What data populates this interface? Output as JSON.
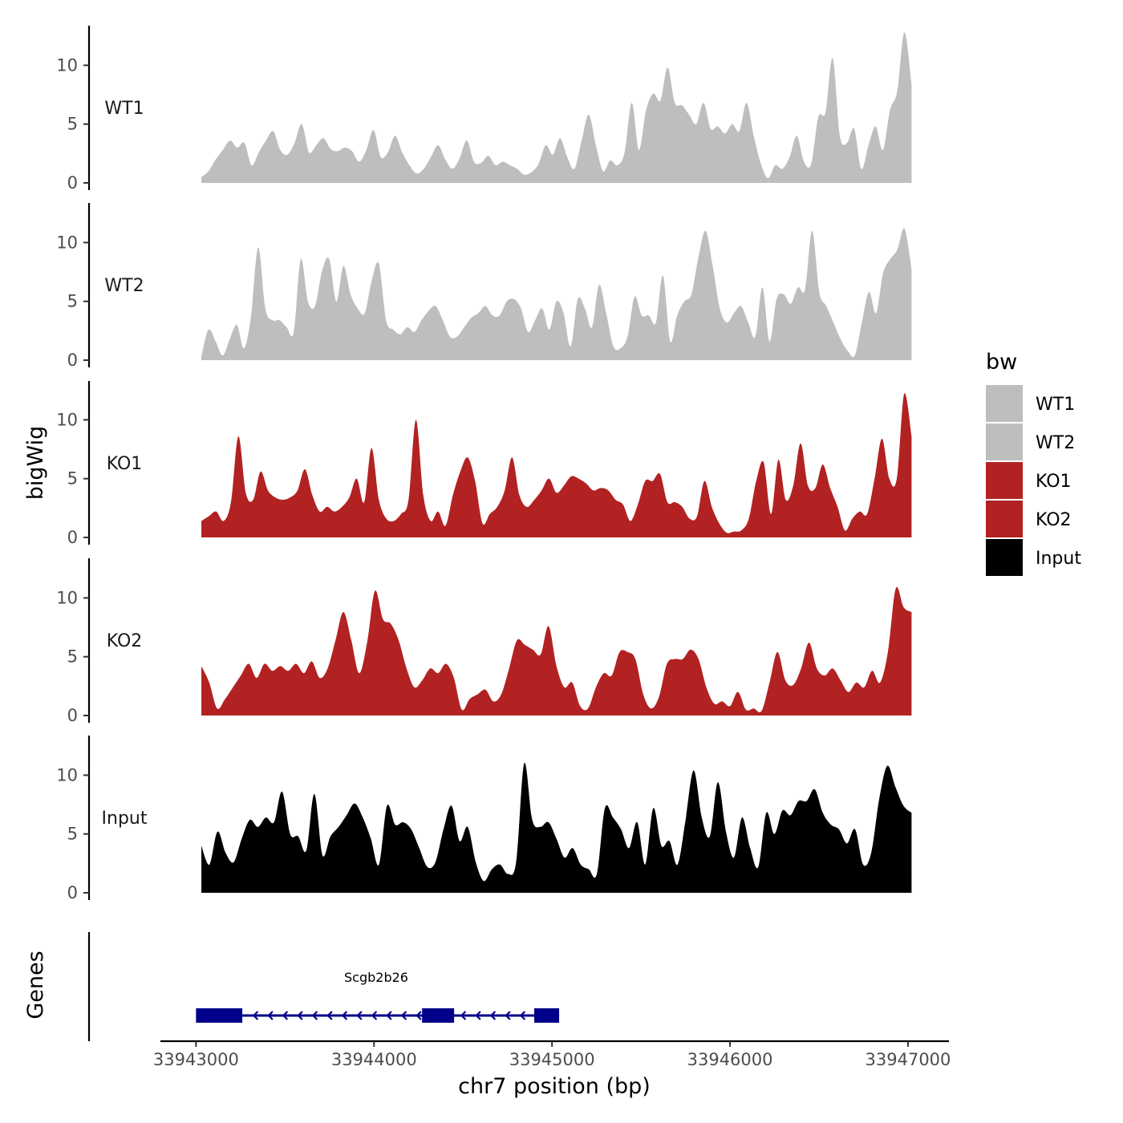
{
  "chart_data": {
    "type": "area",
    "y_axis_title": "bigWig",
    "genes_axis_title": "Genes",
    "x_axis_title": "chr7 position (bp)",
    "xlim": [
      33942800,
      33947230
    ],
    "x_ticks": [
      33943000,
      33944000,
      33945000,
      33946000,
      33947000
    ],
    "x_tick_labels": [
      "33943000",
      "33944000",
      "33945000",
      "33946000",
      "33947000"
    ],
    "ylim": [
      0,
      13.2
    ],
    "y_ticks": [
      0,
      5,
      10
    ],
    "y_tick_labels": [
      "0",
      "5",
      "10"
    ],
    "data_x_range": [
      33943030,
      33947020
    ],
    "legend": {
      "title": "bw",
      "items": [
        {
          "label": "WT1",
          "color": "#bebebe"
        },
        {
          "label": "WT2",
          "color": "#bebebe"
        },
        {
          "label": "KO1",
          "color": "#b22222"
        },
        {
          "label": "KO2",
          "color": "#b22222"
        },
        {
          "label": "Input",
          "color": "#000000"
        }
      ]
    },
    "series": [
      {
        "name": "WT1",
        "color": "#bebebe",
        "values": [
          0.5,
          1.0,
          2.0,
          2.8,
          3.6,
          3.0,
          3.4,
          1.5,
          2.6,
          3.6,
          4.4,
          2.8,
          2.4,
          3.4,
          5.0,
          2.6,
          3.2,
          3.8,
          2.9,
          2.7,
          3.0,
          2.7,
          1.8,
          2.8,
          4.5,
          2.2,
          2.6,
          4.0,
          2.6,
          1.5,
          0.8,
          1.2,
          2.2,
          3.2,
          2.0,
          1.2,
          2.1,
          3.6,
          1.8,
          1.7,
          2.3,
          1.5,
          1.8,
          1.5,
          1.2,
          0.7,
          0.9,
          1.6,
          3.2,
          2.4,
          3.8,
          2.2,
          1.2,
          3.6,
          5.8,
          3.2,
          1.0,
          1.9,
          1.5,
          2.6,
          6.8,
          2.8,
          6.2,
          7.6,
          7.0,
          9.8,
          6.8,
          6.6,
          5.8,
          5.0,
          6.8,
          4.6,
          4.8,
          4.2,
          5.0,
          4.4,
          6.8,
          4.0,
          1.6,
          0.4,
          1.5,
          1.2,
          2.2,
          4.0,
          1.8,
          1.6,
          5.6,
          6.0,
          10.6,
          4.0,
          3.4,
          4.6,
          1.2,
          3.2,
          4.8,
          2.8,
          6.2,
          7.8,
          12.8,
          8.4
        ]
      },
      {
        "name": "WT2",
        "color": "#bebebe",
        "values": [
          0.3,
          2.6,
          1.6,
          0.4,
          1.8,
          3.0,
          1.0,
          3.8,
          9.6,
          4.4,
          3.4,
          3.4,
          2.8,
          2.4,
          8.6,
          5.0,
          4.6,
          7.6,
          8.6,
          5.0,
          8.0,
          5.6,
          4.4,
          4.0,
          6.8,
          8.2,
          3.4,
          2.6,
          2.2,
          2.8,
          2.4,
          3.4,
          4.2,
          4.6,
          3.4,
          2.0,
          2.0,
          2.8,
          3.6,
          4.0,
          4.6,
          3.8,
          3.8,
          5.0,
          5.2,
          4.4,
          2.4,
          3.4,
          4.4,
          2.6,
          5.0,
          4.0,
          1.2,
          5.2,
          4.4,
          2.8,
          6.4,
          4.0,
          1.2,
          1.0,
          2.0,
          5.4,
          3.8,
          3.8,
          3.2,
          7.2,
          1.6,
          3.8,
          5.0,
          5.6,
          8.8,
          11.0,
          8.0,
          4.4,
          3.2,
          4.0,
          4.6,
          3.2,
          2.0,
          6.2,
          1.6,
          5.2,
          5.6,
          4.8,
          6.2,
          6.0,
          11.0,
          5.8,
          4.6,
          3.2,
          1.8,
          0.8,
          0.4,
          3.2,
          5.8,
          4.0,
          7.4,
          8.6,
          9.4,
          11.2,
          7.8
        ]
      },
      {
        "name": "KO1",
        "color": "#b22222",
        "values": [
          1.4,
          1.8,
          2.2,
          1.4,
          3.0,
          8.6,
          3.8,
          3.2,
          5.6,
          4.0,
          3.4,
          3.2,
          3.4,
          4.0,
          5.8,
          3.6,
          2.2,
          2.6,
          2.2,
          2.6,
          3.4,
          5.0,
          3.0,
          7.6,
          3.2,
          1.6,
          1.4,
          2.0,
          3.2,
          10.0,
          3.6,
          1.4,
          2.2,
          1.0,
          3.6,
          5.6,
          6.8,
          4.8,
          1.2,
          2.0,
          2.6,
          4.0,
          6.8,
          3.6,
          2.6,
          3.2,
          4.0,
          5.0,
          3.8,
          4.4,
          5.2,
          5.0,
          4.6,
          4.0,
          4.2,
          4.0,
          3.2,
          2.8,
          1.4,
          2.8,
          4.8,
          4.8,
          5.4,
          3.0,
          3.0,
          2.6,
          1.6,
          1.8,
          4.8,
          2.6,
          1.2,
          0.4,
          0.5,
          0.6,
          1.6,
          4.8,
          6.4,
          2.0,
          6.6,
          3.2,
          4.4,
          8.0,
          4.4,
          4.2,
          6.2,
          4.2,
          2.6,
          0.6,
          1.6,
          2.2,
          2.0,
          5.0,
          8.4,
          5.0,
          5.0,
          12.2,
          8.6
        ]
      },
      {
        "name": "KO2",
        "color": "#b22222",
        "values": [
          4.2,
          2.8,
          0.6,
          1.4,
          2.4,
          3.4,
          4.4,
          3.2,
          4.4,
          3.8,
          4.2,
          3.8,
          4.4,
          3.6,
          4.6,
          3.2,
          4.0,
          6.4,
          8.8,
          6.4,
          3.6,
          6.2,
          10.6,
          8.2,
          7.8,
          6.4,
          4.0,
          2.4,
          3.0,
          4.0,
          3.6,
          4.4,
          3.2,
          0.5,
          1.4,
          1.8,
          2.2,
          1.2,
          1.8,
          4.0,
          6.4,
          6.0,
          5.6,
          5.2,
          7.6,
          4.2,
          2.4,
          2.8,
          0.8,
          0.6,
          2.4,
          3.6,
          3.4,
          5.4,
          5.4,
          4.8,
          1.8,
          0.6,
          1.6,
          4.4,
          4.8,
          4.8,
          5.6,
          4.8,
          2.4,
          1.0,
          1.2,
          0.8,
          2.0,
          0.5,
          0.6,
          0.4,
          2.8,
          5.4,
          3.0,
          2.6,
          4.0,
          6.2,
          4.0,
          3.4,
          4.0,
          3.0,
          2.0,
          2.8,
          2.4,
          3.8,
          2.8,
          5.4,
          10.8,
          9.2,
          8.8
        ]
      },
      {
        "name": "Input",
        "color": "#000000",
        "values": [
          4.0,
          2.4,
          5.2,
          3.4,
          2.6,
          4.6,
          6.2,
          5.6,
          6.4,
          6.0,
          8.6,
          5.0,
          4.8,
          3.6,
          8.4,
          3.2,
          4.8,
          5.6,
          6.6,
          7.6,
          6.4,
          4.6,
          2.4,
          7.4,
          5.8,
          6.0,
          5.4,
          3.8,
          2.2,
          2.6,
          5.4,
          7.4,
          4.4,
          5.6,
          2.6,
          1.0,
          2.0,
          2.4,
          1.6,
          2.6,
          11.0,
          6.2,
          5.6,
          6.0,
          4.6,
          3.0,
          3.8,
          2.4,
          2.0,
          1.6,
          7.2,
          6.4,
          5.4,
          3.8,
          6.0,
          2.4,
          7.2,
          4.0,
          4.4,
          2.4,
          6.2,
          10.4,
          6.4,
          4.8,
          9.4,
          5.2,
          3.0,
          6.4,
          3.8,
          2.2,
          6.8,
          5.0,
          7.0,
          6.6,
          7.8,
          7.8,
          8.8,
          6.8,
          5.8,
          5.4,
          4.2,
          5.4,
          2.4,
          3.4,
          8.0,
          10.8,
          9.0,
          7.4,
          6.8
        ]
      }
    ],
    "gene": {
      "name": "Scgb2b26",
      "strand": "-",
      "start": 33943000,
      "end": 33945040,
      "exons": [
        [
          33943000,
          33943260
        ],
        [
          33944270,
          33944450
        ],
        [
          33944900,
          33945040
        ]
      ]
    }
  }
}
